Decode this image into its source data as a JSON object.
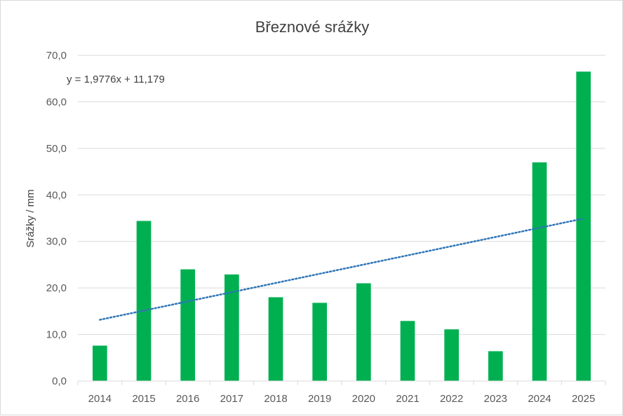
{
  "chart_data": {
    "type": "bar",
    "title": "Březnové srážky",
    "xlabel": "",
    "ylabel": "Srážky / mm",
    "categories": [
      "2014",
      "2015",
      "2016",
      "2017",
      "2018",
      "2019",
      "2020",
      "2021",
      "2022",
      "2023",
      "2024",
      "2025"
    ],
    "values": [
      7.6,
      34.4,
      24.0,
      22.9,
      18.0,
      16.8,
      21.0,
      12.9,
      11.1,
      6.4,
      47.0,
      66.5
    ],
    "ylim": [
      0,
      70
    ],
    "yticks": [
      "0,0",
      "10,0",
      "20,0",
      "30,0",
      "40,0",
      "50,0",
      "60,0",
      "70,0"
    ],
    "ytick_values": [
      0,
      10,
      20,
      30,
      40,
      50,
      60,
      70
    ],
    "grid": true,
    "bar_color": "#00b050",
    "trendline": {
      "type": "linear",
      "slope": 1.9776,
      "intercept": 11.179,
      "equation_label": "y = 1,9776x + 11,179",
      "color": "#2e75b6",
      "style": "dotted"
    },
    "legend": "none"
  }
}
